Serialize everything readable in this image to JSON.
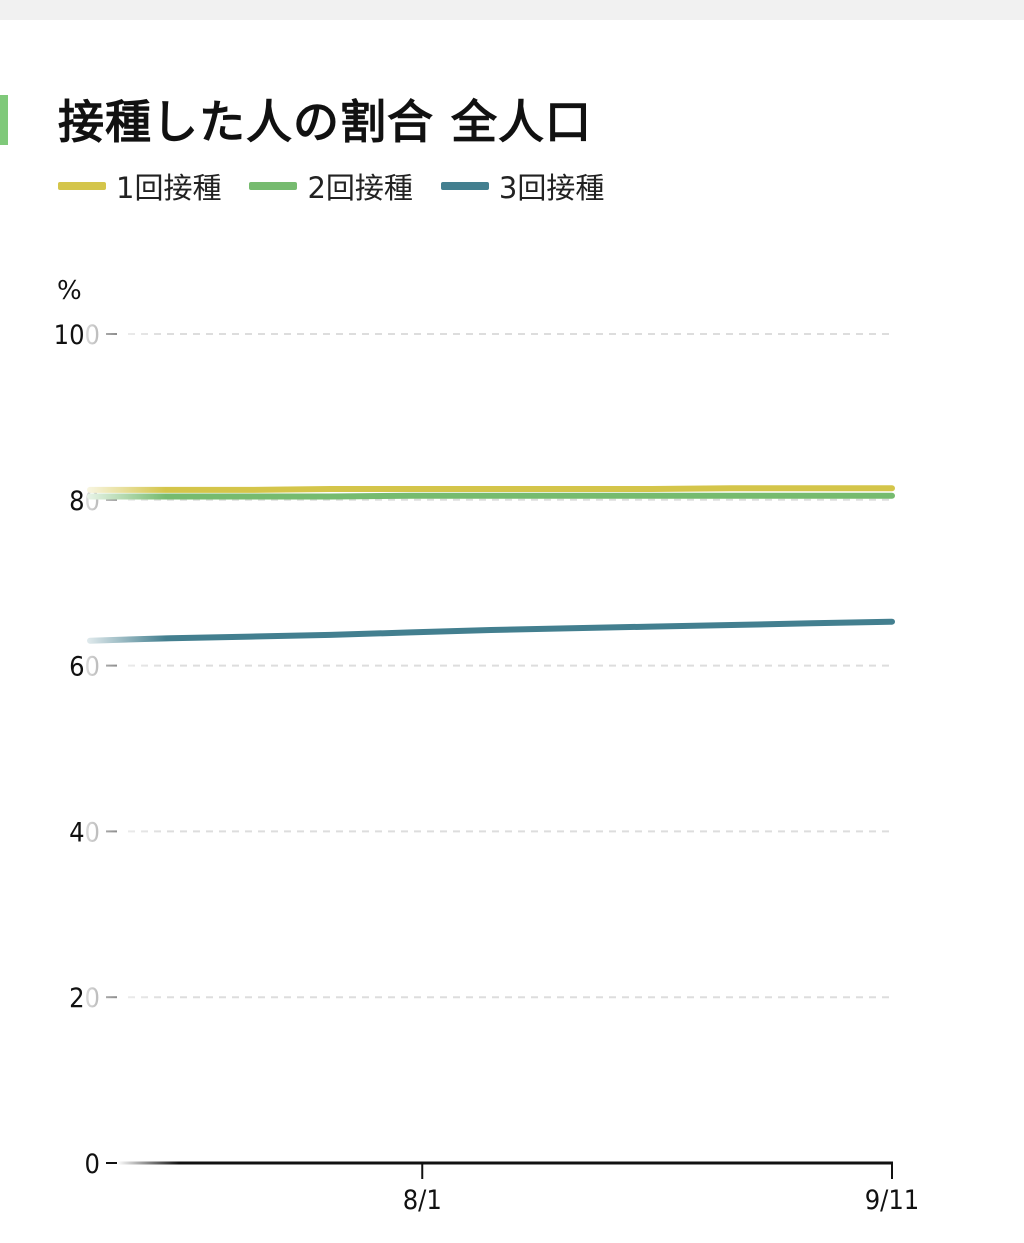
{
  "chart_data": {
    "type": "line",
    "title": "接種した人の割合 全人口",
    "ylabel": "%",
    "ylim": [
      0,
      100
    ],
    "yticks": [
      0,
      20,
      40,
      60,
      80,
      100
    ],
    "xlim": [
      "2022-07-03",
      "2022-09-11"
    ],
    "xticks": [
      {
        "date": "2022-08-01",
        "label": "8/1"
      },
      {
        "date": "2022-09-11",
        "label": "9/11"
      }
    ],
    "grid": true,
    "legend_position": "top-left",
    "x": [
      "2022-07-03",
      "2022-07-10",
      "2022-07-17",
      "2022-07-24",
      "2022-07-31",
      "2022-08-07",
      "2022-08-14",
      "2022-08-21",
      "2022-08-28",
      "2022-09-04",
      "2022-09-11"
    ],
    "series": [
      {
        "name": "1回接種",
        "color": "#d4c54a",
        "values": [
          81.2,
          81.2,
          81.2,
          81.3,
          81.3,
          81.3,
          81.3,
          81.3,
          81.4,
          81.4,
          81.4
        ]
      },
      {
        "name": "2回接種",
        "color": "#76bb6f",
        "values": [
          80.4,
          80.4,
          80.4,
          80.4,
          80.5,
          80.5,
          80.5,
          80.5,
          80.5,
          80.5,
          80.5
        ]
      },
      {
        "name": "3回接種",
        "color": "#437f8f",
        "values": [
          63.0,
          63.3,
          63.5,
          63.7,
          64.0,
          64.3,
          64.5,
          64.7,
          64.9,
          65.1,
          65.3
        ]
      }
    ]
  }
}
